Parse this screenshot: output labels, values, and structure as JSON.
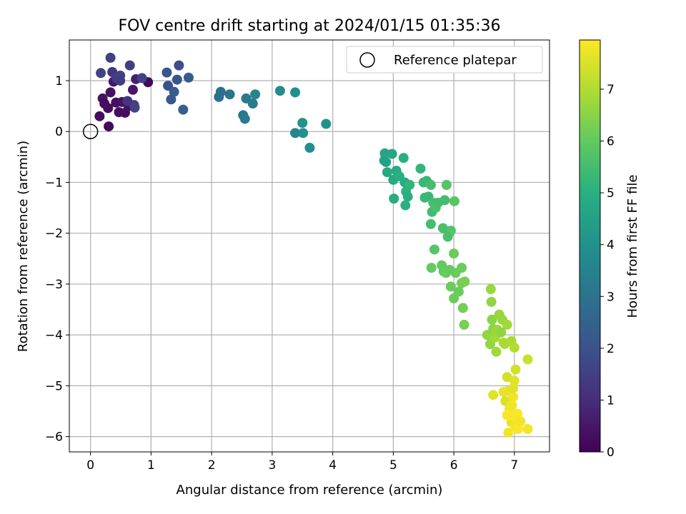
{
  "chart_data": {
    "type": "scatter",
    "title": "FOV centre drift starting at 2024/01/15 01:35:36",
    "xlabel": "Angular distance from reference (arcmin)",
    "ylabel": "Rotation from reference (arcmin)",
    "xlim": [
      -0.35,
      7.58
    ],
    "ylim": [
      -6.3,
      1.8
    ],
    "x_ticks": [
      0,
      1,
      2,
      3,
      4,
      5,
      6,
      7
    ],
    "y_ticks": [
      1,
      0,
      -1,
      -2,
      -3,
      -4,
      -5,
      -6
    ],
    "grid": true,
    "colormap": "viridis",
    "legend": {
      "placement": "top-right",
      "entries": [
        "Reference platepar"
      ]
    },
    "reference_point": {
      "x": 0,
      "y": 0,
      "label": "Reference platepar"
    },
    "colorbar": {
      "label": "Hours from first FF file",
      "ticks": [
        0,
        1,
        2,
        3,
        4,
        5,
        6,
        7
      ],
      "range": [
        0,
        7.95
      ]
    },
    "points": [
      [
        0.15,
        0.3,
        0.3
      ],
      [
        0.2,
        0.65,
        0.4
      ],
      [
        0.23,
        0.55,
        0.3
      ],
      [
        0.29,
        0.46,
        0.3
      ],
      [
        0.3,
        0.1,
        0.2
      ],
      [
        0.33,
        0.77,
        0.4
      ],
      [
        0.38,
        0.98,
        0.5
      ],
      [
        0.42,
        0.57,
        0.3
      ],
      [
        0.47,
        0.38,
        0.3
      ],
      [
        0.52,
        0.58,
        0.4
      ],
      [
        0.57,
        0.37,
        0.3
      ],
      [
        0.63,
        0.5,
        0.4
      ],
      [
        0.7,
        0.82,
        0.5
      ],
      [
        0.75,
        1.03,
        0.7
      ],
      [
        0.95,
        0.97,
        0.2
      ],
      [
        0.17,
        1.15,
        1.6
      ],
      [
        0.33,
        1.45,
        1.5
      ],
      [
        0.36,
        1.17,
        1.3
      ],
      [
        0.43,
        1.05,
        1.4
      ],
      [
        0.49,
        1.1,
        1.5
      ],
      [
        0.49,
        1.0,
        1.4
      ],
      [
        0.65,
        1.3,
        1.5
      ],
      [
        0.72,
        0.52,
        1.4
      ],
      [
        0.73,
        0.47,
        1.6
      ],
      [
        0.85,
        1.05,
        1.6
      ],
      [
        0.61,
        0.6,
        1.2
      ],
      [
        1.26,
        1.16,
        2.1
      ],
      [
        1.28,
        0.9,
        2.0
      ],
      [
        1.33,
        0.63,
        2.2
      ],
      [
        1.38,
        0.78,
        2.3
      ],
      [
        1.43,
        1.02,
        2.1
      ],
      [
        1.46,
        1.3,
        1.9
      ],
      [
        1.53,
        0.43,
        2.4
      ],
      [
        1.62,
        1.06,
        2.3
      ],
      [
        2.12,
        0.68,
        2.9
      ],
      [
        2.15,
        0.78,
        2.9
      ],
      [
        2.3,
        0.73,
        3.0
      ],
      [
        2.52,
        0.32,
        3.1
      ],
      [
        2.55,
        0.25,
        3.2
      ],
      [
        2.57,
        0.65,
        3.2
      ],
      [
        2.68,
        0.55,
        3.3
      ],
      [
        2.72,
        0.73,
        3.6
      ],
      [
        3.13,
        0.8,
        3.8
      ],
      [
        3.38,
        0.77,
        3.9
      ],
      [
        3.38,
        -0.03,
        3.6
      ],
      [
        3.5,
        0.17,
        4.0
      ],
      [
        3.51,
        -0.03,
        4.0
      ],
      [
        3.62,
        -0.32,
        3.9
      ],
      [
        3.89,
        0.15,
        4.0
      ],
      [
        4.85,
        -0.57,
        4.6
      ],
      [
        4.86,
        -0.43,
        4.6
      ],
      [
        4.88,
        -0.6,
        4.5
      ],
      [
        4.9,
        -0.8,
        4.8
      ],
      [
        4.98,
        -0.44,
        4.7
      ],
      [
        5.0,
        -0.95,
        4.8
      ],
      [
        5.01,
        -1.32,
        4.9
      ],
      [
        5.05,
        -0.77,
        4.9
      ],
      [
        5.1,
        -0.88,
        5.0
      ],
      [
        5.17,
        -0.52,
        5.0
      ],
      [
        5.19,
        -1.0,
        4.9
      ],
      [
        5.2,
        -1.45,
        5.0
      ],
      [
        5.21,
        -1.18,
        5.1
      ],
      [
        5.24,
        -1.28,
        5.0
      ],
      [
        5.27,
        -1.05,
        5.2
      ],
      [
        5.45,
        -0.73,
        5.2
      ],
      [
        5.5,
        -1.0,
        5.3
      ],
      [
        5.52,
        -1.3,
        5.3
      ],
      [
        5.55,
        -0.97,
        5.3
      ],
      [
        5.58,
        -1.28,
        5.3
      ],
      [
        5.62,
        -1.05,
        5.5
      ],
      [
        5.62,
        -1.82,
        5.5
      ],
      [
        5.64,
        -1.58,
        5.4
      ],
      [
        5.66,
        -1.4,
        5.5
      ],
      [
        5.68,
        -2.32,
        5.8
      ],
      [
        5.7,
        -1.5,
        5.6
      ],
      [
        5.74,
        -1.4,
        5.5
      ],
      [
        5.85,
        -1.35,
        5.5
      ],
      [
        5.88,
        -1.05,
        5.8
      ],
      [
        5.95,
        -1.95,
        5.7
      ],
      [
        5.92,
        -2.0,
        5.8
      ],
      [
        5.82,
        -1.9,
        5.6
      ],
      [
        5.9,
        -2.07,
        5.6
      ],
      [
        6.01,
        -1.37,
        5.8
      ],
      [
        5.63,
        -2.68,
        6.0
      ],
      [
        5.8,
        -2.63,
        6.0
      ],
      [
        5.83,
        -2.75,
        6.0
      ],
      [
        5.87,
        -2.78,
        6.1
      ],
      [
        5.93,
        -2.72,
        6.0
      ],
      [
        5.95,
        -3.05,
        6.1
      ],
      [
        6.0,
        -2.4,
        6.1
      ],
      [
        6.03,
        -2.78,
        6.1
      ],
      [
        6.0,
        -3.28,
        6.1
      ],
      [
        6.08,
        -3.15,
        6.1
      ],
      [
        6.13,
        -2.68,
        6.1
      ],
      [
        6.13,
        -2.98,
        6.2
      ],
      [
        6.15,
        -3.47,
        6.2
      ],
      [
        6.18,
        -2.95,
        6.3
      ],
      [
        6.17,
        -3.8,
        6.3
      ],
      [
        6.55,
        -4.0,
        6.6
      ],
      [
        6.6,
        -4.18,
        6.6
      ],
      [
        6.61,
        -3.1,
        6.7
      ],
      [
        6.62,
        -3.35,
        6.6
      ],
      [
        6.63,
        -3.7,
        6.5
      ],
      [
        6.65,
        -3.88,
        6.6
      ],
      [
        6.68,
        -4.05,
        6.8
      ],
      [
        6.7,
        -4.33,
        6.8
      ],
      [
        6.72,
        -3.9,
        6.7
      ],
      [
        6.75,
        -3.6,
        6.7
      ],
      [
        6.78,
        -3.95,
        6.6
      ],
      [
        6.8,
        -3.7,
        6.7
      ],
      [
        6.82,
        -4.15,
        6.9
      ],
      [
        6.84,
        -4.18,
        6.9
      ],
      [
        6.88,
        -3.8,
        6.8
      ],
      [
        6.95,
        -4.12,
        6.9
      ],
      [
        7.0,
        -4.25,
        7.0
      ],
      [
        7.02,
        -4.68,
        7.4
      ],
      [
        7.22,
        -4.48,
        7.3
      ],
      [
        6.65,
        -5.18,
        7.6
      ],
      [
        6.82,
        -5.12,
        7.7
      ],
      [
        6.85,
        -5.3,
        7.5
      ],
      [
        6.88,
        -4.83,
        7.4
      ],
      [
        6.9,
        -5.1,
        7.7
      ],
      [
        6.92,
        -5.45,
        7.7
      ],
      [
        6.95,
        -5.5,
        7.8
      ],
      [
        6.95,
        -5.72,
        7.7
      ],
      [
        6.98,
        -5.22,
        7.8
      ],
      [
        6.98,
        -5.05,
        7.6
      ],
      [
        7.0,
        -5.6,
        7.9
      ],
      [
        7.0,
        -4.9,
        7.6
      ],
      [
        7.02,
        -5.8,
        7.8
      ],
      [
        7.05,
        -5.55,
        7.9
      ],
      [
        7.06,
        -5.85,
        7.9
      ],
      [
        7.1,
        -5.7,
        7.8
      ],
      [
        6.9,
        -5.92,
        7.8
      ],
      [
        7.22,
        -5.85,
        7.8
      ],
      [
        6.88,
        -5.58,
        7.9
      ],
      [
        6.96,
        -5.38,
        7.8
      ]
    ]
  }
}
